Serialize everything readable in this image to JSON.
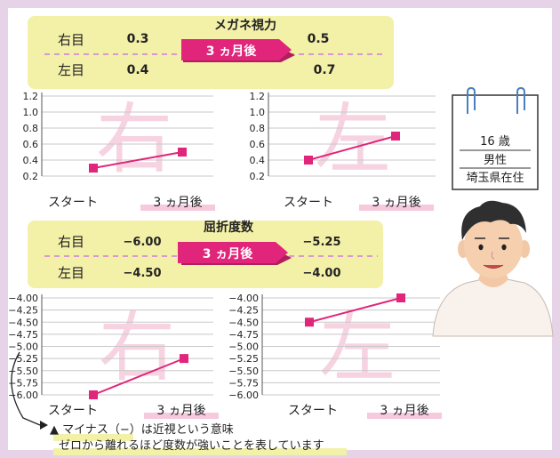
{
  "colors": {
    "accent": "#e0257a",
    "panel": "#f3f0a8",
    "frame": "#e6d3e8",
    "watermark": "#f7d3e2",
    "grid": "#c8c8c8"
  },
  "vision": {
    "title": "メガネ視力",
    "right_label": "右目",
    "left_label": "左目",
    "right_before": "0.3",
    "right_after": "0.5",
    "left_before": "0.4",
    "left_after": "0.7",
    "arrow_label": "3 ヵ月後"
  },
  "refraction": {
    "title": "屈折度数",
    "right_label": "右目",
    "left_label": "左目",
    "right_before": "−6.00",
    "right_after": "−5.25",
    "left_before": "−4.50",
    "left_after": "−4.00",
    "arrow_label": "3 ヵ月後"
  },
  "profile": {
    "age": "16 歳",
    "sex": "男性",
    "location": "埼玉県在住"
  },
  "note": {
    "line1": "▲ マイナス（−）は近視という意味",
    "line2": "ゼロから離れるほど度数が強いことを表しています"
  },
  "chart_data": [
    {
      "type": "line",
      "watermark": "右",
      "categories": [
        "スタート",
        "3 ヵ月後"
      ],
      "values": [
        0.3,
        0.5
      ],
      "ylim": [
        0.2,
        1.2
      ],
      "yticks": [
        "1.2",
        "1.0",
        "0.8",
        "0.6",
        "0.4",
        "0.2"
      ],
      "ytick_values": [
        1.2,
        1.0,
        0.8,
        0.6,
        0.4,
        0.2
      ],
      "grid": true
    },
    {
      "type": "line",
      "watermark": "左",
      "categories": [
        "スタート",
        "3 ヵ月後"
      ],
      "values": [
        0.4,
        0.7
      ],
      "ylim": [
        0.2,
        1.2
      ],
      "yticks": [
        "1.2",
        "1.0",
        "0.8",
        "0.6",
        "0.4",
        "0.2"
      ],
      "ytick_values": [
        1.2,
        1.0,
        0.8,
        0.6,
        0.4,
        0.2
      ],
      "grid": true
    },
    {
      "type": "line",
      "watermark": "右",
      "categories": [
        "スタート",
        "3 ヵ月後"
      ],
      "values": [
        -6.0,
        -5.25
      ],
      "ylim": [
        -6.0,
        -4.0
      ],
      "yticks": [
        "−4.00",
        "−4.25",
        "−4.50",
        "−4.75",
        "−5.00",
        "−5.25",
        "−5.50",
        "−5.75",
        "−6.00"
      ],
      "ytick_values": [
        -4.0,
        -4.25,
        -4.5,
        -4.75,
        -5.0,
        -5.25,
        -5.5,
        -5.75,
        -6.0
      ],
      "grid": true
    },
    {
      "type": "line",
      "watermark": "左",
      "categories": [
        "スタート",
        "3 ヵ月後"
      ],
      "values": [
        -4.5,
        -4.0
      ],
      "ylim": [
        -6.0,
        -4.0
      ],
      "yticks": [
        "−4.00",
        "−4.25",
        "−4.50",
        "−4.75",
        "−5.00",
        "−5.25",
        "−5.50",
        "−5.75",
        "−6.00"
      ],
      "ytick_values": [
        -4.0,
        -4.25,
        -4.5,
        -4.75,
        -5.0,
        -5.25,
        -5.5,
        -5.75,
        -6.0
      ],
      "grid": true
    }
  ]
}
